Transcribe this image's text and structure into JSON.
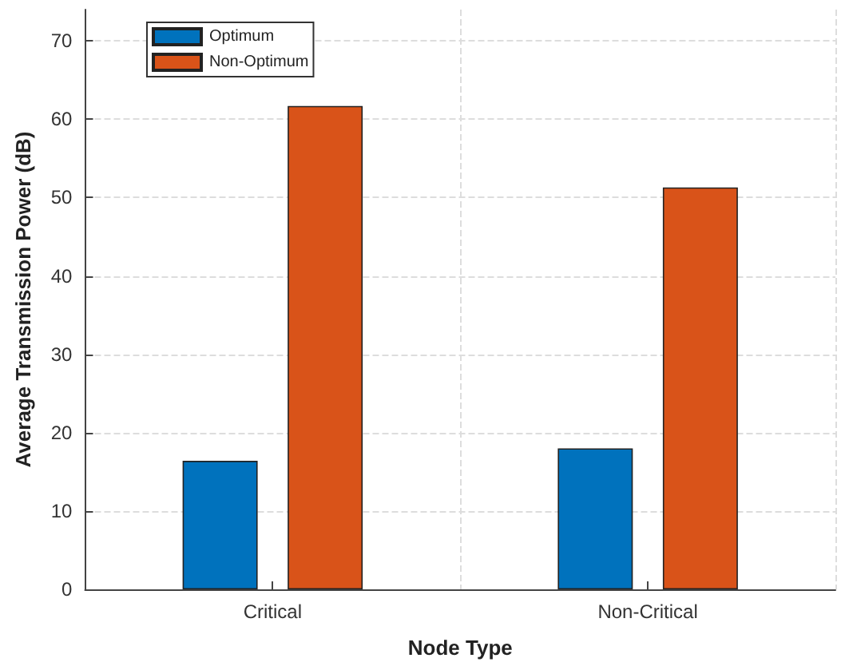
{
  "chart_data": {
    "type": "bar",
    "xlabel": "Node Type",
    "ylabel": "Average Transmission Power (dB)",
    "categories": [
      "Critical",
      "Non-Critical"
    ],
    "series": [
      {
        "name": "Optimum",
        "color": "#0072bd",
        "values": [
          16.4,
          18.0
        ]
      },
      {
        "name": "Non-Optimum",
        "color": "#d95319",
        "values": [
          61.7,
          51.3
        ]
      }
    ],
    "ylim": [
      0,
      74
    ],
    "yticks": [
      0,
      10,
      20,
      30,
      40,
      50,
      60,
      70
    ],
    "grid": true,
    "legend": "top left"
  }
}
